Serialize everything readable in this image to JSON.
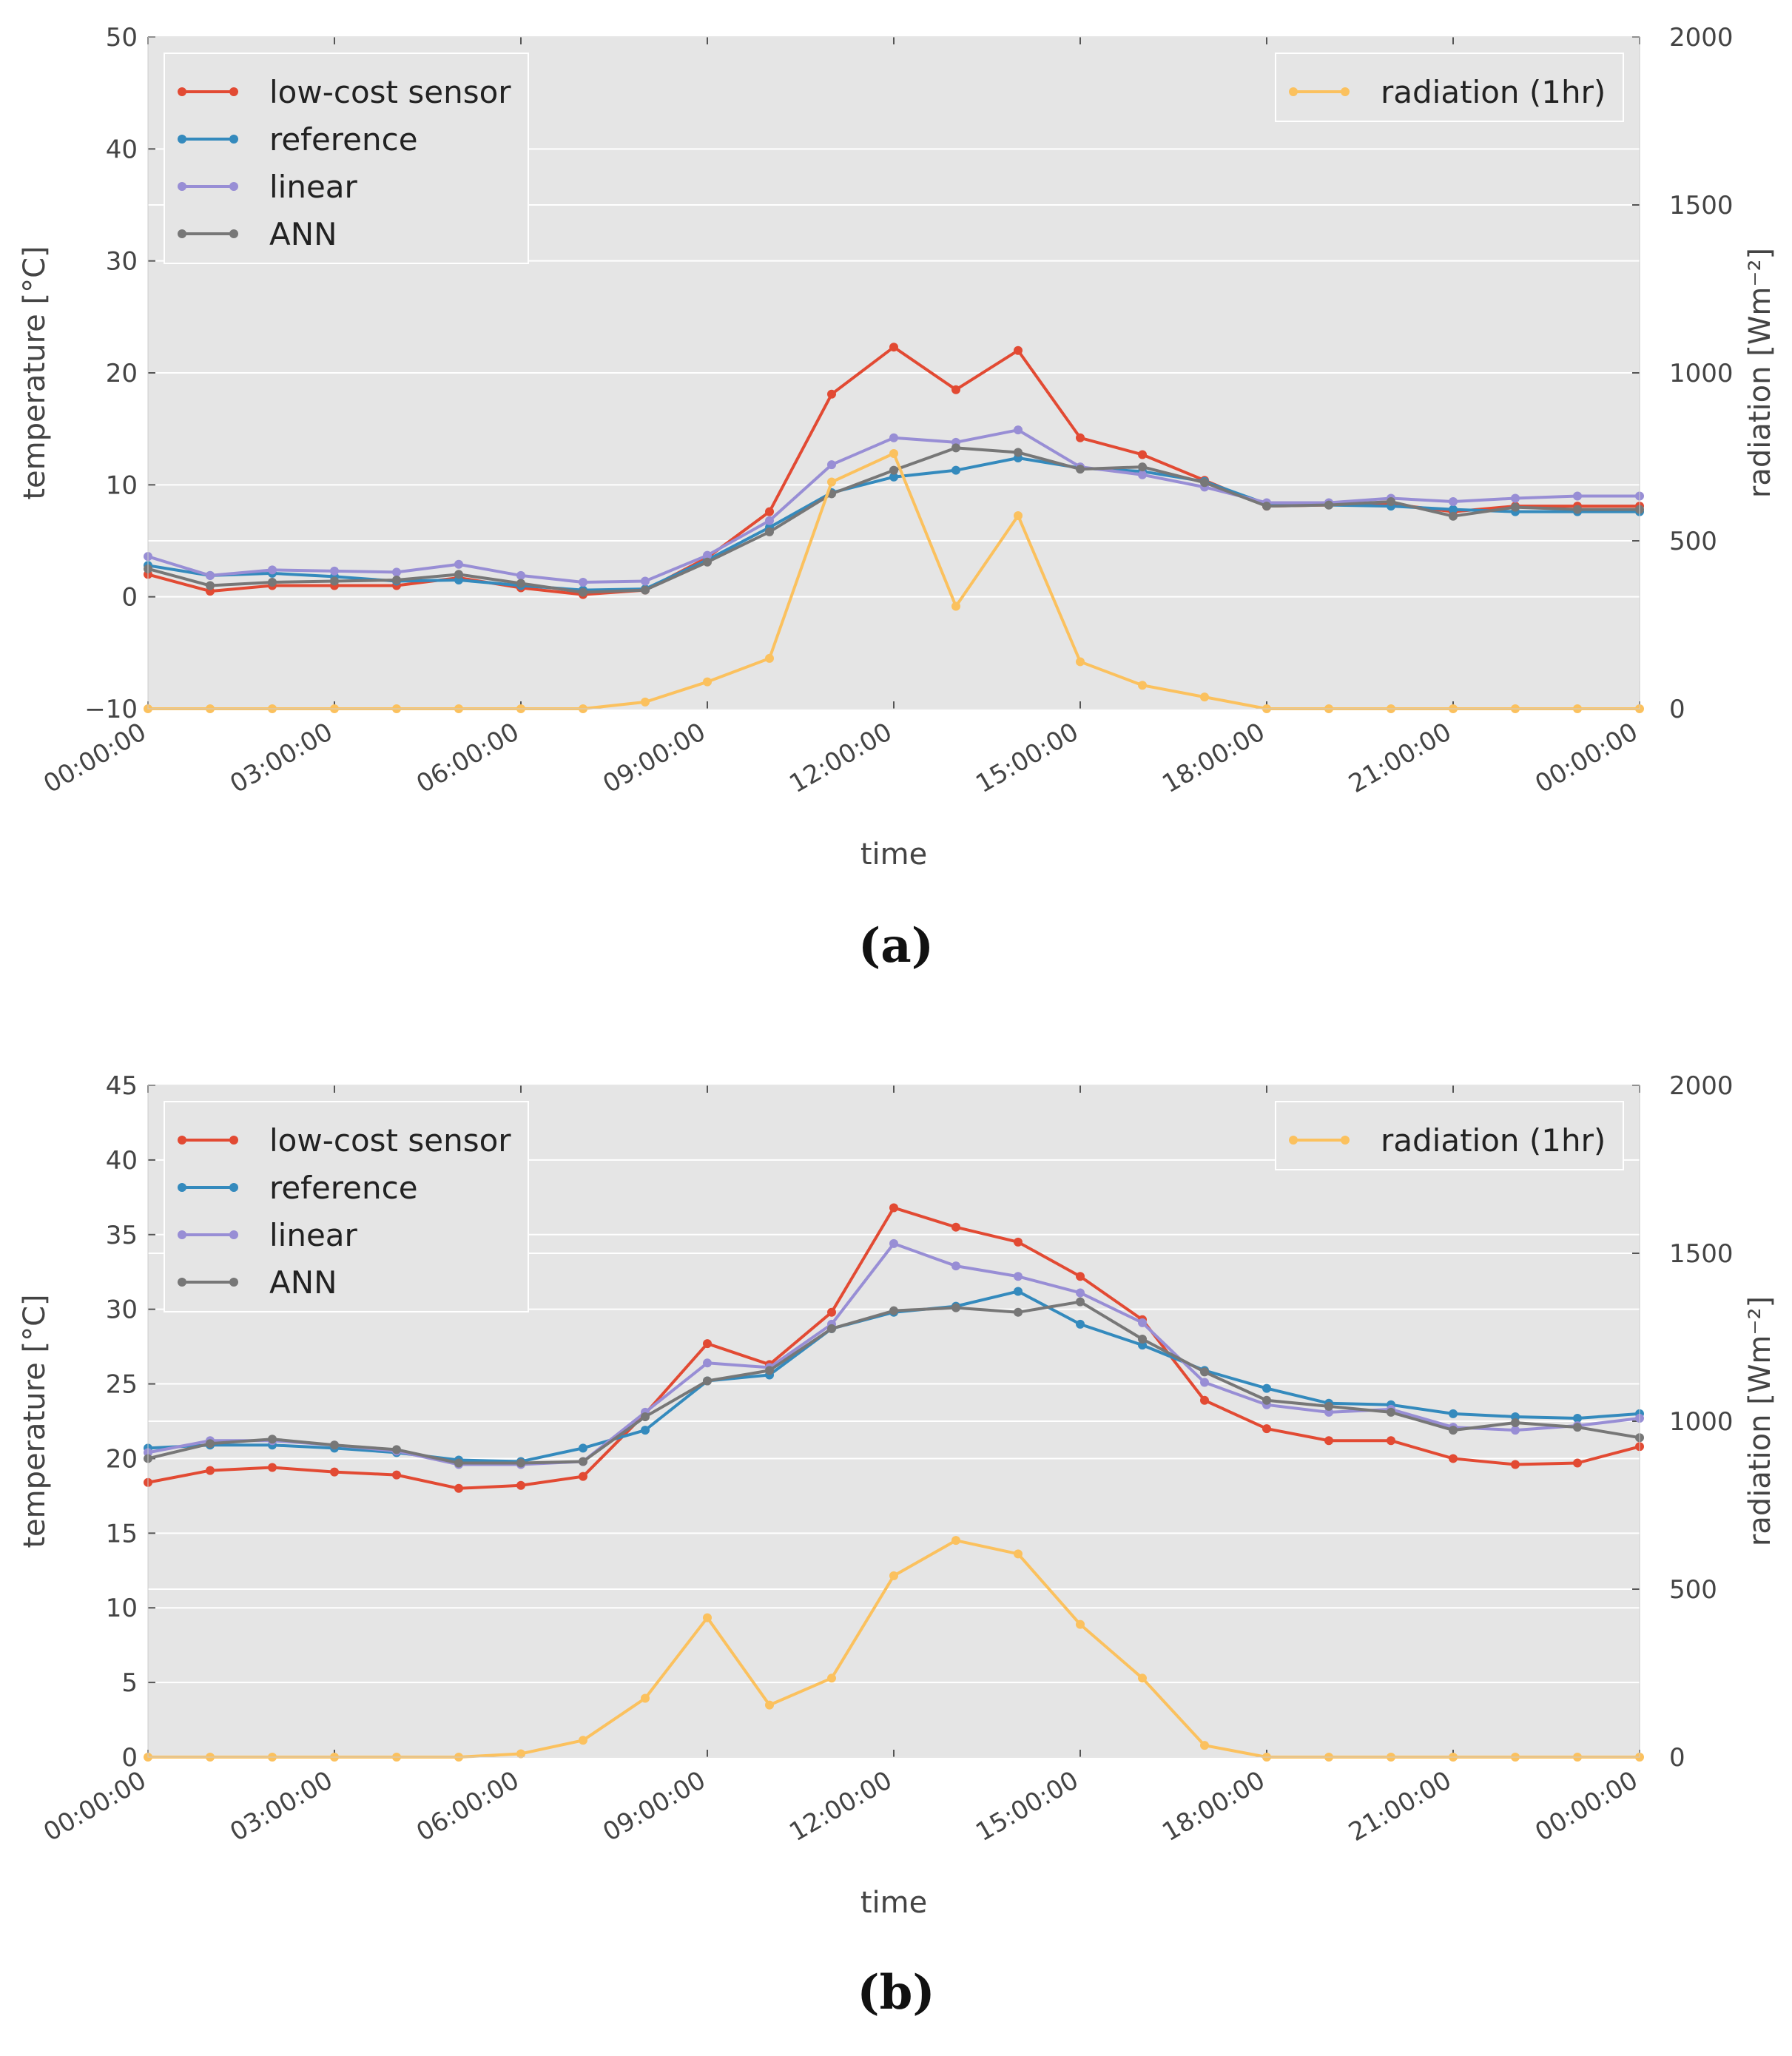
{
  "chart_data": [
    {
      "type": "line",
      "panel_label": "(a)",
      "xlabel": "time",
      "ylabel": "temperature [°C]",
      "y2label": "radiation [Wm⁻²]",
      "x_tick_labels": [
        "00:00:00",
        "03:00:00",
        "06:00:00",
        "09:00:00",
        "12:00:00",
        "15:00:00",
        "18:00:00",
        "21:00:00",
        "00:00:00"
      ],
      "x_hours": [
        0,
        1,
        2,
        3,
        4,
        5,
        6,
        7,
        8,
        9,
        10,
        11,
        12,
        13,
        14,
        15,
        16,
        17,
        18,
        19,
        20,
        21,
        22,
        23,
        24
      ],
      "ylim": [
        -10,
        50
      ],
      "yticks": [
        -10,
        0,
        10,
        20,
        30,
        40,
        50
      ],
      "y_tick_labels": [
        "−10",
        "0",
        "10",
        "20",
        "30",
        "40",
        "50"
      ],
      "y2lim": [
        0,
        2000
      ],
      "y2ticks": [
        0,
        500,
        1000,
        1500,
        2000
      ],
      "grid": true,
      "legend_left": "top-left",
      "legend_right": "top-right",
      "series": [
        {
          "name": "low-cost sensor",
          "color": "#e24a33",
          "axis": "left",
          "values": [
            2.0,
            0.5,
            1.0,
            1.0,
            1.0,
            1.7,
            0.8,
            0.2,
            0.6,
            3.5,
            7.6,
            18.1,
            22.3,
            18.5,
            22.0,
            14.2,
            12.7,
            10.4,
            8.1,
            8.2,
            8.3,
            7.6,
            8.1,
            8.1,
            8.1
          ]
        },
        {
          "name": "reference",
          "color": "#348abd",
          "axis": "left",
          "values": [
            2.8,
            1.9,
            2.1,
            1.8,
            1.4,
            1.5,
            1.0,
            0.6,
            0.7,
            3.3,
            6.2,
            9.3,
            10.7,
            11.3,
            12.4,
            11.5,
            11.2,
            10.3,
            8.3,
            8.2,
            8.1,
            7.8,
            7.6,
            7.6,
            7.6
          ]
        },
        {
          "name": "linear",
          "color": "#988ed5",
          "axis": "left",
          "values": [
            3.6,
            1.9,
            2.4,
            2.3,
            2.2,
            2.9,
            1.9,
            1.3,
            1.4,
            3.7,
            6.8,
            11.8,
            14.2,
            13.8,
            14.9,
            11.6,
            10.9,
            9.8,
            8.4,
            8.4,
            8.8,
            8.5,
            8.8,
            9.0,
            9.0
          ]
        },
        {
          "name": "ANN",
          "color": "#777777",
          "axis": "left",
          "values": [
            2.5,
            1.0,
            1.3,
            1.4,
            1.5,
            2.0,
            1.2,
            0.4,
            0.6,
            3.1,
            5.8,
            9.2,
            11.3,
            13.3,
            12.9,
            11.4,
            11.6,
            10.2,
            8.1,
            8.2,
            8.5,
            7.2,
            8.0,
            7.8,
            7.8
          ]
        },
        {
          "name": "radiation (1hr)",
          "color": "#fbc15e",
          "axis": "right",
          "values": [
            0,
            0,
            0,
            0,
            0,
            0,
            0,
            0,
            20,
            80,
            150,
            675,
            760,
            305,
            575,
            140,
            70,
            35,
            0,
            0,
            0,
            0,
            0,
            0,
            0
          ]
        }
      ]
    },
    {
      "type": "line",
      "panel_label": "(b)",
      "xlabel": "time",
      "ylabel": "temperature [°C]",
      "y2label": "radiation [Wm⁻²]",
      "x_tick_labels": [
        "00:00:00",
        "03:00:00",
        "06:00:00",
        "09:00:00",
        "12:00:00",
        "15:00:00",
        "18:00:00",
        "21:00:00",
        "00:00:00"
      ],
      "x_hours": [
        0,
        1,
        2,
        3,
        4,
        5,
        6,
        7,
        8,
        9,
        10,
        11,
        12,
        13,
        14,
        15,
        16,
        17,
        18,
        19,
        20,
        21,
        22,
        23,
        24
      ],
      "ylim": [
        0,
        45
      ],
      "yticks": [
        0,
        5,
        10,
        15,
        20,
        25,
        30,
        35,
        40,
        45
      ],
      "y_tick_labels": [
        "0",
        "5",
        "10",
        "15",
        "20",
        "25",
        "30",
        "35",
        "40",
        "45"
      ],
      "y2lim": [
        0,
        2000
      ],
      "y2ticks": [
        0,
        500,
        1000,
        1500,
        2000
      ],
      "grid": true,
      "legend_left": "top-left",
      "legend_right": "top-right",
      "series": [
        {
          "name": "low-cost sensor",
          "color": "#e24a33",
          "axis": "left",
          "values": [
            18.4,
            19.2,
            19.4,
            19.1,
            18.9,
            18.0,
            18.2,
            18.8,
            23.0,
            27.7,
            26.3,
            29.8,
            36.8,
            35.5,
            34.5,
            32.2,
            29.3,
            23.9,
            22.0,
            21.2,
            21.2,
            20.0,
            19.6,
            19.7,
            20.8
          ]
        },
        {
          "name": "reference",
          "color": "#348abd",
          "axis": "left",
          "values": [
            20.7,
            20.9,
            20.9,
            20.7,
            20.4,
            19.9,
            19.8,
            20.7,
            21.9,
            25.2,
            25.6,
            28.7,
            29.8,
            30.2,
            31.2,
            29.0,
            27.6,
            25.9,
            24.7,
            23.7,
            23.6,
            23.0,
            22.8,
            22.7,
            23.0
          ]
        },
        {
          "name": "linear",
          "color": "#988ed5",
          "axis": "left",
          "values": [
            20.4,
            21.2,
            21.2,
            20.9,
            20.5,
            19.6,
            19.6,
            19.8,
            23.1,
            26.4,
            26.1,
            29.0,
            34.4,
            32.9,
            32.2,
            31.1,
            29.1,
            25.1,
            23.6,
            23.1,
            23.3,
            22.1,
            21.9,
            22.2,
            22.7
          ]
        },
        {
          "name": "ANN",
          "color": "#777777",
          "axis": "left",
          "values": [
            20.0,
            21.0,
            21.3,
            20.9,
            20.6,
            19.7,
            19.7,
            19.8,
            22.8,
            25.2,
            25.9,
            28.7,
            29.9,
            30.1,
            29.8,
            30.5,
            28.0,
            25.8,
            23.9,
            23.5,
            23.1,
            21.9,
            22.4,
            22.1,
            21.4
          ]
        },
        {
          "name": "radiation (1hr)",
          "color": "#fbc15e",
          "axis": "right",
          "values": [
            0,
            0,
            0,
            0,
            0,
            0,
            10,
            50,
            175,
            415,
            155,
            235,
            540,
            645,
            605,
            395,
            235,
            35,
            0,
            0,
            0,
            0,
            0,
            0,
            0
          ]
        }
      ]
    }
  ]
}
